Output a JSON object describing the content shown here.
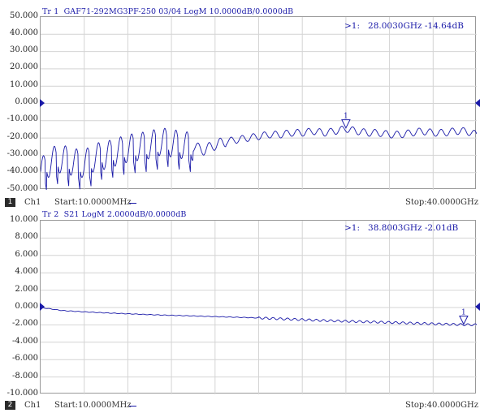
{
  "colors": {
    "trace": "#1a1aa8",
    "grid": "#d4d4d4",
    "border": "#999999",
    "label": "#1a1aa8"
  },
  "trace1": {
    "title": "Tr 1  GAF71-292MG3PF-250 03/04 LogM 10.0000dB/0.0000dB",
    "marker_readout": ">1:   28.0030GHz -14.64dB",
    "marker_label": "1",
    "y_ticks": [
      "50.000",
      "40.000",
      "30.000",
      "20.000",
      "10.000",
      "0.000",
      "-10.000",
      "-20.000",
      "-30.000",
      "-40.000",
      "-50.000"
    ],
    "channel_number": "1",
    "channel_label": "Ch1",
    "start_label": "Start:10.0000MHz",
    "stop_label": "Stop:40.0000GHz"
  },
  "trace2": {
    "title": "Tr 2  S21 LogM 2.0000dB/0.0000dB",
    "marker_readout": ">1:   38.8003GHz -2.01dB",
    "marker_label": "1",
    "y_ticks": [
      "10.000",
      "8.000",
      "6.000",
      "4.000",
      "2.000",
      "0.000",
      "-2.000",
      "-4.000",
      "-6.000",
      "-8.000",
      "-10.000"
    ],
    "channel_number": "2",
    "channel_label": "Ch1",
    "start_label": "Start:10.0000MHz",
    "stop_label": "Stop:40.0000GHz"
  },
  "chart_data": [
    {
      "type": "line",
      "title": "Tr 1  GAF71-292MG3PF-250 03/04 LogM 10.0000dB/0.0000dB",
      "xlabel": "",
      "ylabel": "",
      "x_unit": "GHz",
      "xlim": [
        0.01,
        40.0
      ],
      "ylim": [
        -50,
        50
      ],
      "grid": true,
      "marker": {
        "x": 28.003,
        "y": -14.64
      },
      "series": [
        {
          "x": [
            0.01,
            1,
            2,
            3,
            4,
            5,
            6,
            7,
            8,
            9,
            10,
            11,
            12,
            13,
            14,
            15,
            16,
            17,
            18,
            19,
            20,
            21,
            22,
            23,
            24,
            25,
            26,
            27,
            28,
            29,
            30,
            31,
            32,
            33,
            34,
            35,
            36,
            37,
            38,
            39,
            40
          ],
          "y": [
            -40,
            -33,
            -32,
            -34,
            -35,
            -31,
            -30,
            -28,
            -26,
            -25,
            -24,
            -22,
            -23,
            -24,
            -25,
            -27,
            -24,
            -22,
            -21,
            -20,
            -19,
            -18,
            -18,
            -17,
            -17,
            -16,
            -17,
            -16,
            -14.64,
            -16,
            -17,
            -17,
            -18,
            -18,
            -17,
            -16,
            -17,
            -17,
            -16,
            -16,
            -18
          ]
        }
      ]
    },
    {
      "type": "line",
      "title": "Tr 2  S21 LogM 2.0000dB/0.0000dB",
      "xlabel": "",
      "ylabel": "",
      "x_unit": "GHz",
      "xlim": [
        0.01,
        40.0
      ],
      "ylim": [
        -10,
        10
      ],
      "grid": true,
      "marker": {
        "x": 38.8003,
        "y": -2.01
      },
      "series": [
        {
          "x": [
            0.01,
            2,
            4,
            6,
            8,
            10,
            12,
            14,
            16,
            18,
            20,
            22,
            24,
            26,
            28,
            30,
            32,
            34,
            36,
            38,
            40
          ],
          "y": [
            0.0,
            -0.35,
            -0.5,
            -0.62,
            -0.72,
            -0.82,
            -0.9,
            -0.97,
            -1.05,
            -1.12,
            -1.2,
            -1.3,
            -1.4,
            -1.5,
            -1.58,
            -1.65,
            -1.72,
            -1.8,
            -1.88,
            -1.95,
            -2.0
          ]
        }
      ]
    }
  ]
}
